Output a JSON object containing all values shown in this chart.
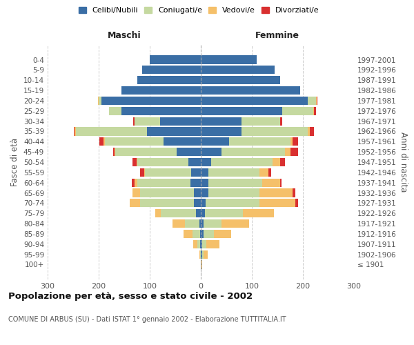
{
  "age_groups": [
    "100+",
    "95-99",
    "90-94",
    "85-89",
    "80-84",
    "75-79",
    "70-74",
    "65-69",
    "60-64",
    "55-59",
    "50-54",
    "45-49",
    "40-44",
    "35-39",
    "30-34",
    "25-29",
    "20-24",
    "15-19",
    "10-14",
    "5-9",
    "0-4"
  ],
  "birth_years": [
    "≤ 1901",
    "1902-1906",
    "1907-1911",
    "1912-1916",
    "1917-1921",
    "1922-1926",
    "1927-1931",
    "1932-1936",
    "1937-1941",
    "1942-1946",
    "1947-1951",
    "1952-1956",
    "1957-1961",
    "1962-1966",
    "1967-1971",
    "1972-1976",
    "1977-1981",
    "1982-1986",
    "1987-1991",
    "1992-1996",
    "1997-2001"
  ],
  "colors": {
    "celibi": "#3a6ea5",
    "coniugati": "#c5d9a0",
    "vedovi": "#f5c06a",
    "divorziati": "#d93030"
  },
  "males": {
    "celibi": [
      0,
      0,
      1,
      2,
      3,
      9,
      14,
      14,
      20,
      19,
      24,
      47,
      73,
      105,
      80,
      155,
      195,
      155,
      125,
      115,
      100
    ],
    "coniugati": [
      0,
      1,
      6,
      14,
      28,
      70,
      105,
      105,
      105,
      90,
      100,
      120,
      115,
      140,
      50,
      25,
      5,
      0,
      0,
      0,
      0
    ],
    "vedovi": [
      0,
      2,
      8,
      18,
      25,
      10,
      20,
      15,
      5,
      2,
      2,
      2,
      2,
      2,
      0,
      0,
      2,
      0,
      0,
      0,
      0
    ],
    "divorziati": [
      0,
      0,
      0,
      0,
      0,
      0,
      0,
      0,
      5,
      8,
      8,
      3,
      8,
      2,
      2,
      0,
      0,
      0,
      0,
      0,
      0
    ]
  },
  "females": {
    "nubili": [
      1,
      3,
      3,
      5,
      5,
      8,
      10,
      15,
      15,
      15,
      20,
      40,
      55,
      80,
      80,
      160,
      210,
      195,
      155,
      145,
      110
    ],
    "coniugate": [
      0,
      2,
      8,
      20,
      35,
      75,
      105,
      100,
      105,
      100,
      120,
      125,
      120,
      130,
      75,
      60,
      15,
      0,
      0,
      0,
      0
    ],
    "vedove": [
      2,
      8,
      25,
      35,
      55,
      60,
      70,
      65,
      35,
      18,
      15,
      10,
      5,
      3,
      0,
      2,
      2,
      0,
      0,
      0,
      0
    ],
    "divorziate": [
      0,
      0,
      0,
      0,
      0,
      0,
      5,
      5,
      3,
      5,
      10,
      15,
      10,
      8,
      5,
      3,
      2,
      0,
      0,
      0,
      0
    ]
  },
  "xlim": 300,
  "xticks": [
    -300,
    -200,
    -100,
    0,
    100,
    200,
    300
  ],
  "xticklabels": [
    "300",
    "200",
    "100",
    "0",
    "100",
    "200",
    "300"
  ],
  "title": "Popolazione per età, sesso e stato civile - 2002",
  "subtitle": "COMUNE DI ARBUS (SU) - Dati ISTAT 1° gennaio 2002 - Elaborazione TUTTITALIA.IT",
  "label_maschi": "Maschi",
  "label_femmine": "Femmine",
  "ylabel_left": "Fasce di età",
  "ylabel_right": "Anni di nascita",
  "legend_labels": [
    "Celibi/Nubili",
    "Coniugati/e",
    "Vedovi/e",
    "Divorziati/e"
  ],
  "bg_color": "#ffffff",
  "grid_color": "#cccccc",
  "spine_color": "#aaaaaa",
  "tick_label_color": "#555555",
  "title_color": "#111111",
  "subtitle_color": "#555555",
  "maschi_femmine_color": "#222222"
}
